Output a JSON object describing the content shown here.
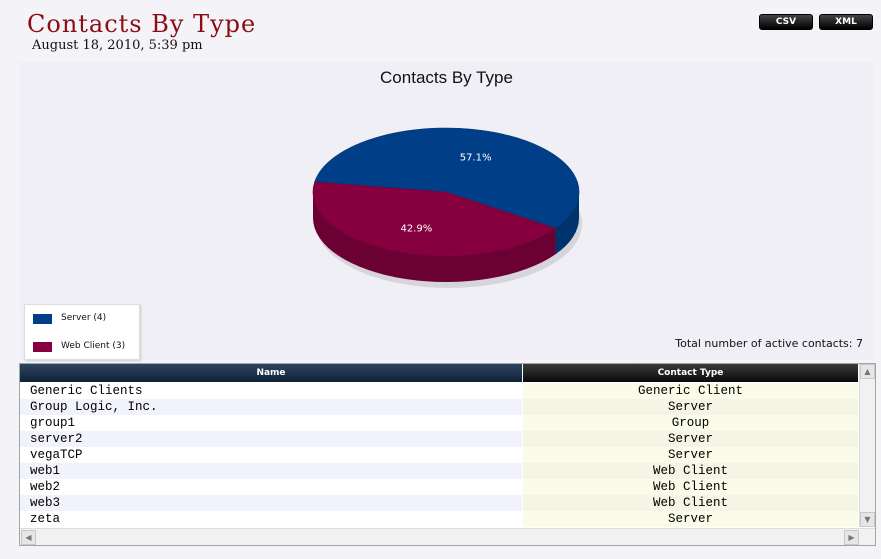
{
  "page": {
    "title": "Contacts By Type",
    "date": "August 18, 2010, 5:39 pm"
  },
  "toolbar": {
    "csv_label": "CSV",
    "xml_label": "XML"
  },
  "chart_data": {
    "type": "pie",
    "title": "Contacts By Type",
    "slices": [
      {
        "label": "Server (4)",
        "value": 57.1,
        "display": "57.1%",
        "color": "#003f87"
      },
      {
        "label": "Web Client (3)",
        "value": 42.9,
        "display": "42.9%",
        "color": "#860040"
      }
    ],
    "legend": "bottom-left",
    "three_d": true
  },
  "summary": {
    "total_label": "Total number of active contacts: 7"
  },
  "table": {
    "columns": [
      "Name",
      "Contact Type"
    ],
    "rows": [
      {
        "name": "Generic Clients",
        "type": "Generic Client"
      },
      {
        "name": "Group Logic, Inc.",
        "type": "Server"
      },
      {
        "name": "group1",
        "type": "Group"
      },
      {
        "name": "server2",
        "type": "Server"
      },
      {
        "name": "vegaTCP",
        "type": "Server"
      },
      {
        "name": "web1",
        "type": "Web Client"
      },
      {
        "name": "web2",
        "type": "Web Client"
      },
      {
        "name": "web3",
        "type": "Web Client"
      },
      {
        "name": "zeta",
        "type": "Server"
      }
    ]
  },
  "icons": {
    "scroll_up": "chevron-up-icon",
    "scroll_down": "chevron-down-icon",
    "scroll_left": "chevron-left-icon",
    "scroll_right": "chevron-right-icon"
  }
}
